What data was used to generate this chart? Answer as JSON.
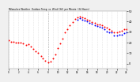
{
  "title": "Milwaukee Weather  Outdoor Temp  vs  Wind Chill  per Minute  (24 Hours)",
  "background_color": "#f0f0f0",
  "plot_bg_color": "#ffffff",
  "dot_color_temp": "#ff0000",
  "dot_color_wc": "#0000ff",
  "dot_size": 2.0,
  "ylim": [
    -5,
    50
  ],
  "xlim": [
    0,
    1440
  ],
  "vline_x": 480,
  "vline_color": "#aaaaaa",
  "grid_color": "#cccccc",
  "temp_x": [
    0,
    30,
    60,
    90,
    120,
    150,
    180,
    210,
    240,
    270,
    300,
    330,
    360,
    400,
    420,
    450,
    480,
    510,
    540,
    570,
    600,
    630,
    660,
    690,
    720,
    750,
    780,
    810,
    840,
    870,
    900,
    930,
    960,
    990,
    1020,
    1050,
    1080,
    1110,
    1140,
    1170,
    1200,
    1230,
    1260,
    1290,
    1320,
    1350,
    1380,
    1410,
    1440
  ],
  "temp_y": [
    22,
    21,
    21,
    20,
    20,
    20,
    19,
    18,
    18,
    16,
    14,
    12,
    10,
    7,
    5,
    3,
    1,
    2,
    5,
    9,
    14,
    19,
    24,
    29,
    33,
    37,
    40,
    43,
    44,
    45,
    44,
    43,
    42,
    41,
    40,
    39,
    38,
    37,
    36,
    35,
    34,
    33,
    31,
    30,
    30,
    31,
    31,
    32,
    33
  ],
  "wc_x": [
    840,
    870,
    900,
    930,
    960,
    990,
    1020,
    1050,
    1080,
    1110,
    1140,
    1170,
    1200,
    1230,
    1260,
    1290,
    1320,
    1350,
    1380,
    1410,
    1440
  ],
  "wc_y": [
    43,
    44,
    43,
    42,
    41,
    40,
    39,
    38,
    37,
    36,
    35,
    34,
    32,
    31,
    30,
    28,
    28,
    29,
    29,
    30,
    31
  ]
}
